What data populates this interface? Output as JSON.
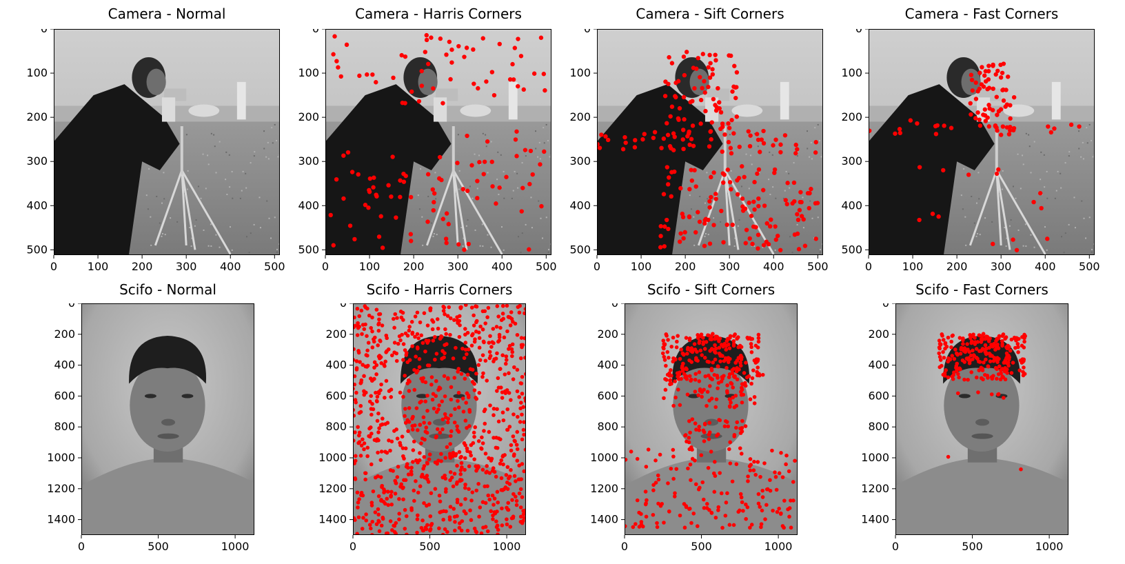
{
  "figure": {
    "rows": [
      {
        "image": "camera",
        "x_ticks": [
          "0",
          "100",
          "200",
          "300",
          "400",
          "500"
        ],
        "y_ticks": [
          "0",
          "100",
          "200",
          "300",
          "400",
          "500"
        ],
        "panels": [
          {
            "title": "Camera - Normal",
            "overlay": "none"
          },
          {
            "title": "Camera - Harris Corners",
            "overlay": "harris"
          },
          {
            "title": "Camera - Sift Corners",
            "overlay": "sift"
          },
          {
            "title": "Camera - Fast Corners",
            "overlay": "fast"
          }
        ]
      },
      {
        "image": "portrait",
        "x_ticks": [
          "0",
          "500",
          "1000"
        ],
        "y_ticks": [
          "0",
          "200",
          "400",
          "600",
          "800",
          "1000",
          "1200",
          "1400"
        ],
        "panels": [
          {
            "title": "Scifo - Normal",
            "overlay": "none"
          },
          {
            "title": "Scifo - Harris Corners",
            "overlay": "harris"
          },
          {
            "title": "Scifo - Sift Corners",
            "overlay": "sift"
          },
          {
            "title": "Scifo - Fast Corners",
            "overlay": "fast"
          }
        ]
      }
    ],
    "marker_color": "#ff0000"
  }
}
